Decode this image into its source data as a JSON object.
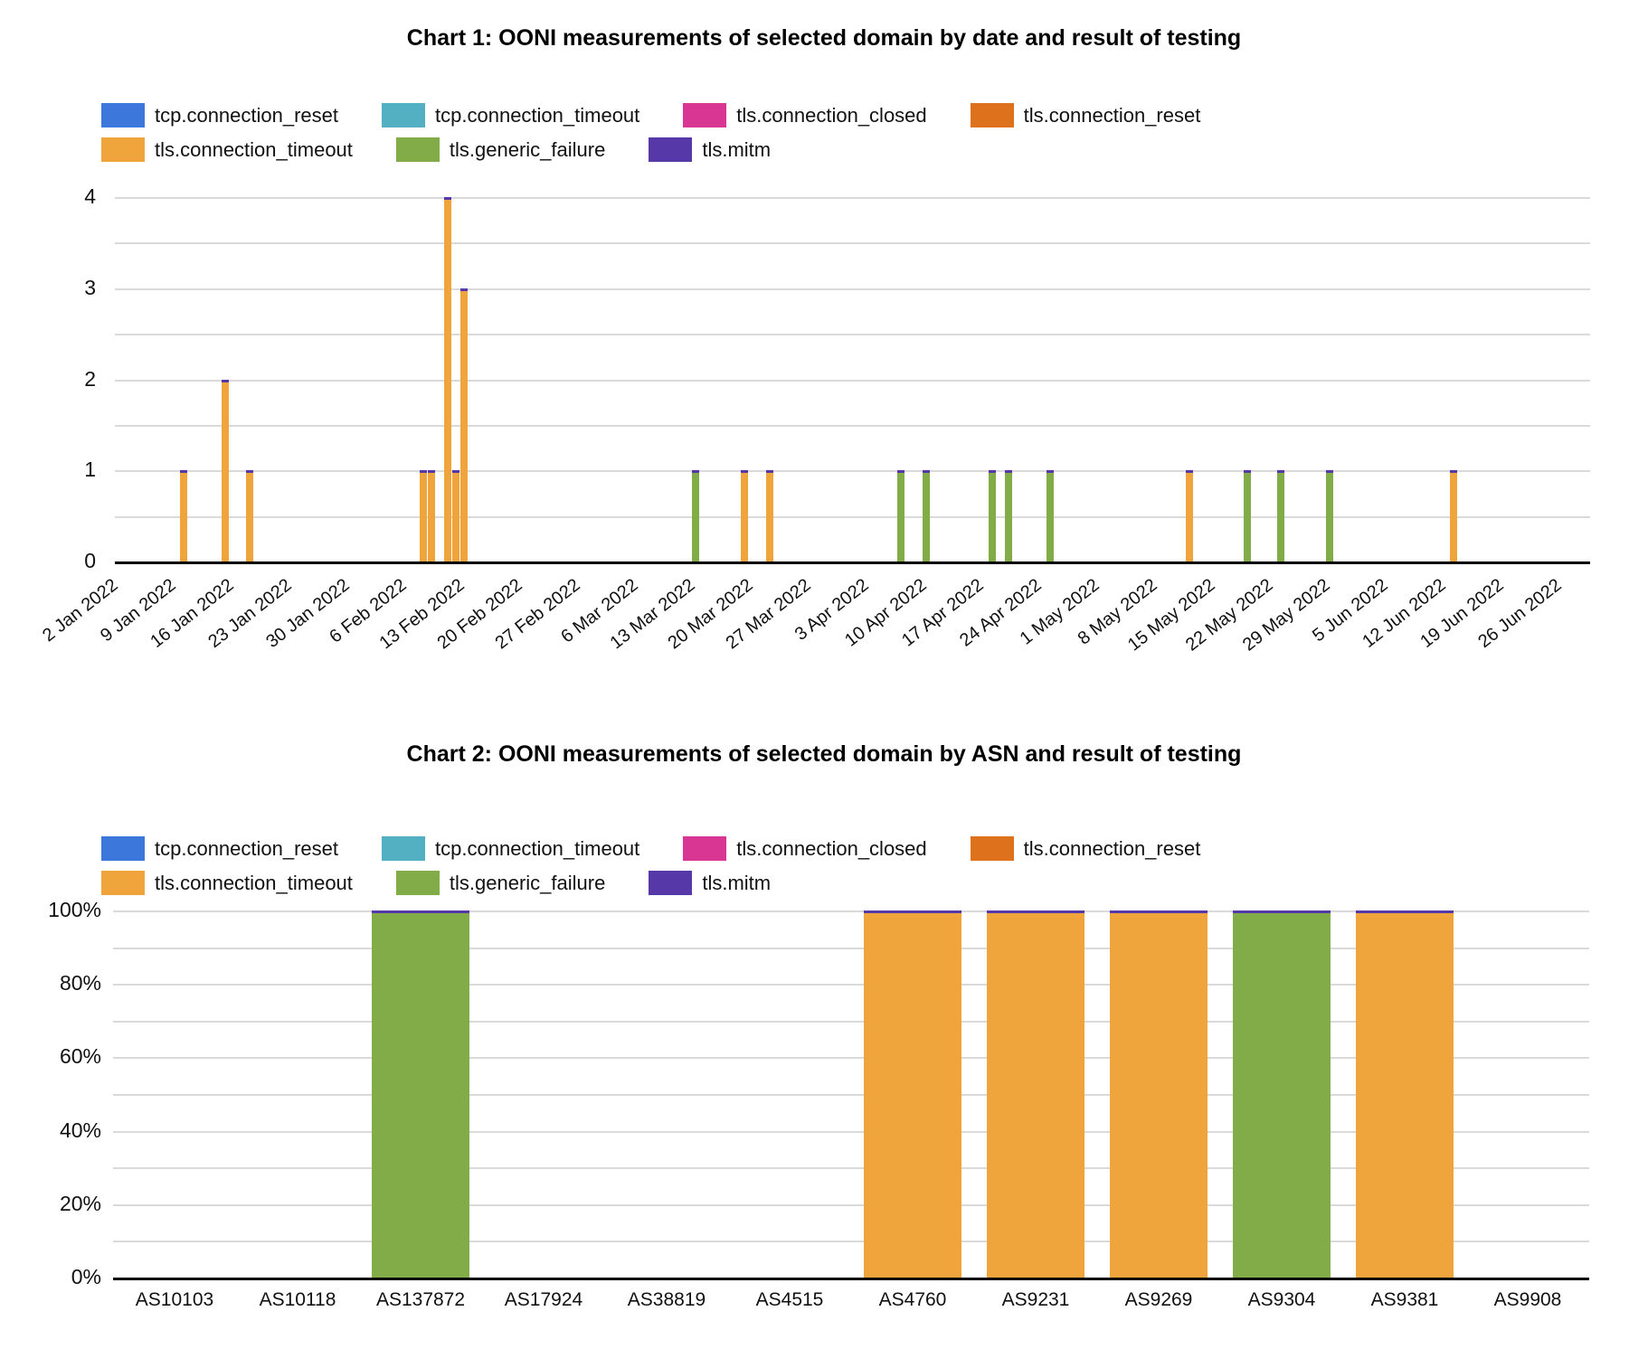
{
  "page": {
    "background": "#ffffff"
  },
  "legend": {
    "items": [
      {
        "label": "tcp.connection_reset",
        "color": "#3C78DC"
      },
      {
        "label": "tcp.connection_timeout",
        "color": "#53AFC2"
      },
      {
        "label": "tls.connection_closed",
        "color": "#D93592"
      },
      {
        "label": "tls.connection_reset",
        "color": "#DE711C"
      },
      {
        "label": "tls.connection_timeout",
        "color": "#F0A43C"
      },
      {
        "label": "tls.generic_failure",
        "color": "#81AC48"
      },
      {
        "label": "tls.mitm",
        "color": "#5638A9"
      }
    ],
    "bar_top_cap_color": "#5638A9"
  },
  "chart_data": [
    {
      "type": "bar",
      "title": "Chart 1: OONI measurements of selected domain by date and result of testing",
      "xlabel": "",
      "ylabel": "",
      "ylim": [
        0,
        4
      ],
      "y_ticks": [
        0,
        1,
        2,
        3,
        4
      ],
      "y_minor_step": 0.5,
      "grid": true,
      "legend_position": "top-left",
      "x_start_date": "2022-01-02",
      "x_tick_labels": [
        "2 Jan 2022",
        "9 Jan 2022",
        "16 Jan 2022",
        "23 Jan 2022",
        "30 Jan 2022",
        "6 Feb 2022",
        "13 Feb 2022",
        "20 Feb 2022",
        "27 Feb 2022",
        "6 Mar 2022",
        "13 Mar 2022",
        "20 Mar 2022",
        "27 Mar 2022",
        "3 Apr 2022",
        "10 Apr 2022",
        "17 Apr 2022",
        "24 Apr 2022",
        "1 May 2022",
        "8 May 2022",
        "15 May 2022",
        "22 May 2022",
        "29 May 2022",
        "5 Jun 2022",
        "12 Jun 2022",
        "19 Jun 2022",
        "26 Jun 2022"
      ],
      "bars": [
        {
          "date": "2022-01-11",
          "series": "tls.connection_timeout",
          "value": 1
        },
        {
          "date": "2022-01-16",
          "series": "tls.connection_timeout",
          "value": 2
        },
        {
          "date": "2022-01-19",
          "series": "tls.connection_timeout",
          "value": 1
        },
        {
          "date": "2022-02-09",
          "series": "tls.connection_timeout",
          "value": 1
        },
        {
          "date": "2022-02-10",
          "series": "tls.connection_timeout",
          "value": 1
        },
        {
          "date": "2022-02-12",
          "series": "tls.connection_timeout",
          "value": 4
        },
        {
          "date": "2022-02-13",
          "series": "tls.connection_timeout",
          "value": 1
        },
        {
          "date": "2022-02-14",
          "series": "tls.connection_timeout",
          "value": 3
        },
        {
          "date": "2022-03-14",
          "series": "tls.generic_failure",
          "value": 1
        },
        {
          "date": "2022-03-20",
          "series": "tls.connection_timeout",
          "value": 1
        },
        {
          "date": "2022-03-23",
          "series": "tls.connection_timeout",
          "value": 1
        },
        {
          "date": "2022-04-08",
          "series": "tls.generic_failure",
          "value": 1
        },
        {
          "date": "2022-04-11",
          "series": "tls.generic_failure",
          "value": 1
        },
        {
          "date": "2022-04-19",
          "series": "tls.generic_failure",
          "value": 1
        },
        {
          "date": "2022-04-21",
          "series": "tls.generic_failure",
          "value": 1
        },
        {
          "date": "2022-04-26",
          "series": "tls.generic_failure",
          "value": 1
        },
        {
          "date": "2022-05-13",
          "series": "tls.connection_timeout",
          "value": 1
        },
        {
          "date": "2022-05-20",
          "series": "tls.generic_failure",
          "value": 1
        },
        {
          "date": "2022-05-24",
          "series": "tls.generic_failure",
          "value": 1
        },
        {
          "date": "2022-05-30",
          "series": "tls.generic_failure",
          "value": 1
        },
        {
          "date": "2022-06-14",
          "series": "tls.connection_timeout",
          "value": 1
        }
      ]
    },
    {
      "type": "bar",
      "stacked_percent": true,
      "title": "Chart 2: OONI measurements of selected domain by ASN and result of testing",
      "xlabel": "",
      "ylabel": "",
      "ylim": [
        0,
        100
      ],
      "y_tick_labels": [
        "0%",
        "20%",
        "40%",
        "60%",
        "80%",
        "100%"
      ],
      "y_minor_step_pct": 10,
      "grid": true,
      "legend_position": "top-left",
      "categories": [
        "AS10103",
        "AS10118",
        "AS137872",
        "AS17924",
        "AS38819",
        "AS4515",
        "AS4760",
        "AS9231",
        "AS9269",
        "AS9304",
        "AS9381",
        "AS9908"
      ],
      "series": [
        {
          "name": "tls.connection_timeout",
          "values": [
            0,
            0,
            0,
            0,
            0,
            0,
            100,
            100,
            100,
            0,
            100,
            0
          ]
        },
        {
          "name": "tls.generic_failure",
          "values": [
            0,
            0,
            100,
            0,
            0,
            0,
            0,
            0,
            0,
            100,
            0,
            0
          ]
        }
      ]
    }
  ]
}
